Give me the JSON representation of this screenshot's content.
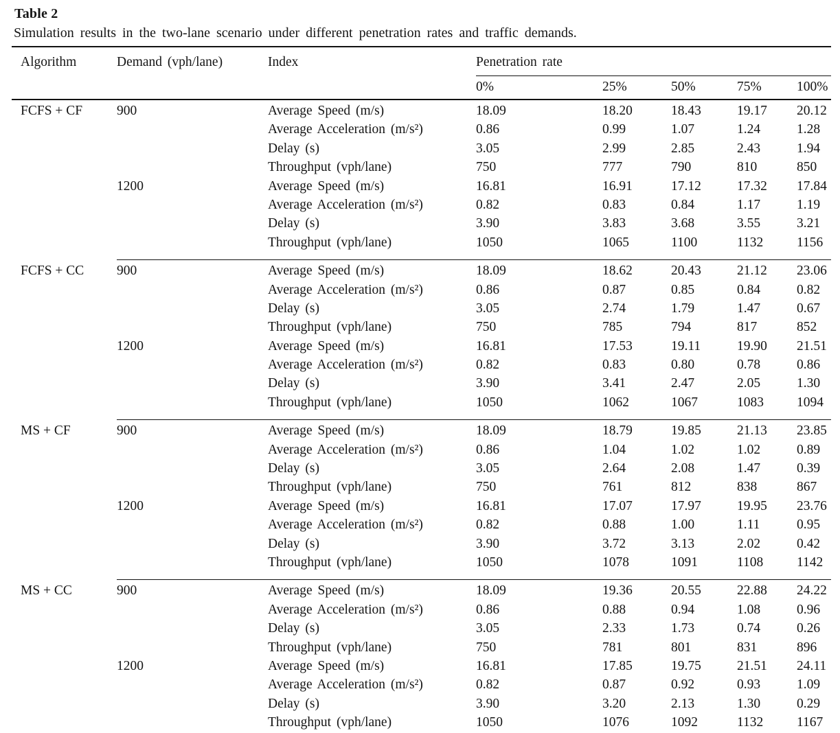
{
  "title": "Table 2",
  "caption": "Simulation results in the two-lane scenario under different penetration rates and traffic demands.",
  "table": {
    "header": {
      "algorithm": "Algorithm",
      "demand": "Demand (vph/lane)",
      "index": "Index",
      "penetration": "Penetration rate"
    },
    "penetration_levels": [
      "0%",
      "25%",
      "50%",
      "75%",
      "100%"
    ],
    "indices": [
      "Average Speed (m/s)",
      "Average Acceleration (m/s²)",
      "Delay (s)",
      "Throughput (vph/lane)"
    ],
    "blocks": [
      {
        "algorithm": "FCFS + CF",
        "groups": [
          {
            "demand": "900",
            "rows": [
              [
                "18.09",
                "18.20",
                "18.43",
                "19.17",
                "20.12"
              ],
              [
                "0.86",
                "0.99",
                "1.07",
                "1.24",
                "1.28"
              ],
              [
                "3.05",
                "2.99",
                "2.85",
                "2.43",
                "1.94"
              ],
              [
                "750",
                "777",
                "790",
                "810",
                "850"
              ]
            ]
          },
          {
            "demand": "1200",
            "rows": [
              [
                "16.81",
                "16.91",
                "17.12",
                "17.32",
                "17.84"
              ],
              [
                "0.82",
                "0.83",
                "0.84",
                "1.17",
                "1.19"
              ],
              [
                "3.90",
                "3.83",
                "3.68",
                "3.55",
                "3.21"
              ],
              [
                "1050",
                "1065",
                "1100",
                "1132",
                "1156"
              ]
            ]
          }
        ]
      },
      {
        "algorithm": "FCFS + CC",
        "groups": [
          {
            "demand": "900",
            "rows": [
              [
                "18.09",
                "18.62",
                "20.43",
                "21.12",
                "23.06"
              ],
              [
                "0.86",
                "0.87",
                "0.85",
                "0.84",
                "0.82"
              ],
              [
                "3.05",
                "2.74",
                "1.79",
                "1.47",
                "0.67"
              ],
              [
                "750",
                "785",
                "794",
                "817",
                "852"
              ]
            ]
          },
          {
            "demand": "1200",
            "rows": [
              [
                "16.81",
                "17.53",
                "19.11",
                "19.90",
                "21.51"
              ],
              [
                "0.82",
                "0.83",
                "0.80",
                "0.78",
                "0.86"
              ],
              [
                "3.90",
                "3.41",
                "2.47",
                "2.05",
                "1.30"
              ],
              [
                "1050",
                "1062",
                "1067",
                "1083",
                "1094"
              ]
            ]
          }
        ]
      },
      {
        "algorithm": "MS + CF",
        "groups": [
          {
            "demand": "900",
            "rows": [
              [
                "18.09",
                "18.79",
                "19.85",
                "21.13",
                "23.85"
              ],
              [
                "0.86",
                "1.04",
                "1.02",
                "1.02",
                "0.89"
              ],
              [
                "3.05",
                "2.64",
                "2.08",
                "1.47",
                "0.39"
              ],
              [
                "750",
                "761",
                "812",
                "838",
                "867"
              ]
            ]
          },
          {
            "demand": "1200",
            "rows": [
              [
                "16.81",
                "17.07",
                "17.97",
                "19.95",
                "23.76"
              ],
              [
                "0.82",
                "0.88",
                "1.00",
                "1.11",
                "0.95"
              ],
              [
                "3.90",
                "3.72",
                "3.13",
                "2.02",
                "0.42"
              ],
              [
                "1050",
                "1078",
                "1091",
                "1108",
                "1142"
              ]
            ]
          }
        ]
      },
      {
        "algorithm": "MS + CC",
        "groups": [
          {
            "demand": "900",
            "rows": [
              [
                "18.09",
                "19.36",
                "20.55",
                "22.88",
                "24.22"
              ],
              [
                "0.86",
                "0.88",
                "0.94",
                "1.08",
                "0.96"
              ],
              [
                "3.05",
                "2.33",
                "1.73",
                "0.74",
                "0.26"
              ],
              [
                "750",
                "781",
                "801",
                "831",
                "896"
              ]
            ]
          },
          {
            "demand": "1200",
            "rows": [
              [
                "16.81",
                "17.85",
                "19.75",
                "21.51",
                "24.11"
              ],
              [
                "0.82",
                "0.87",
                "0.92",
                "0.93",
                "1.09"
              ],
              [
                "3.90",
                "3.20",
                "2.13",
                "1.30",
                "0.29"
              ],
              [
                "1050",
                "1076",
                "1092",
                "1132",
                "1167"
              ]
            ]
          }
        ]
      }
    ]
  }
}
